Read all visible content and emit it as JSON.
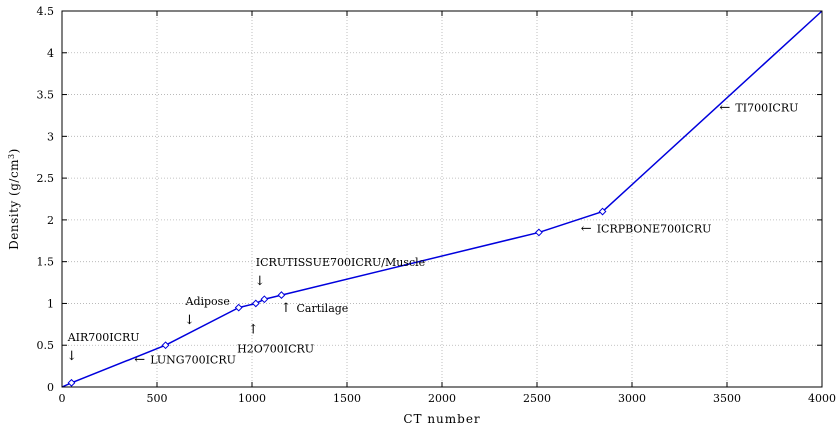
{
  "chart_data": {
    "type": "line",
    "title": "",
    "xlabel": "CT number",
    "ylabel": "Density (g/cm³)",
    "ylabel_base": "Density (g/cm",
    "ylabel_exponent": "3",
    "ylabel_close": ")",
    "xlim": [
      0,
      4000
    ],
    "ylim": [
      0,
      4.5
    ],
    "x_ticks": [
      0,
      500,
      1000,
      1500,
      2000,
      2500,
      3000,
      3500,
      4000
    ],
    "y_ticks": [
      0,
      0.5,
      1,
      1.5,
      2,
      2.5,
      3,
      3.5,
      4,
      4.5
    ],
    "x_tick_labels": [
      "0",
      "500",
      "1000",
      "1500",
      "2000",
      "2500",
      "3000",
      "3500",
      "4000"
    ],
    "y_tick_labels": [
      "0",
      "0.5",
      "1",
      "1.5",
      "2",
      "2.5",
      "3",
      "3.5",
      "4",
      "4.5"
    ],
    "grid": true,
    "legend": "none",
    "series": [
      {
        "color": "#0000dd",
        "marker": "diamond",
        "x": [
          0,
          50,
          545,
          930,
          1020,
          1065,
          1155,
          2510,
          2845,
          4000
        ],
        "y": [
          0,
          0.05,
          0.5,
          0.95,
          1.0,
          1.05,
          1.1,
          1.85,
          2.1,
          4.5
        ],
        "marker_x": [
          50,
          545,
          930,
          1020,
          1065,
          1155,
          2510,
          2845
        ],
        "marker_y": [
          0.05,
          0.5,
          0.95,
          1.0,
          1.05,
          1.1,
          1.85,
          2.1
        ]
      }
    ],
    "annotations": [
      {
        "text": "AIR700ICRU",
        "arrow": "↓",
        "arrow_side": "below",
        "x": 30,
        "y": 0.55
      },
      {
        "text": "LUNG700ICRU",
        "arrow": "←",
        "arrow_side": "left",
        "x": 380,
        "y": 0.28
      },
      {
        "text": "Adipose",
        "arrow": "↓",
        "arrow_side": "below",
        "x": 650,
        "y": 0.98
      },
      {
        "text": "ICRUTISSUE700ICRU/Muscle",
        "arrow": "↓",
        "arrow_side": "below",
        "x": 1020,
        "y": 1.45
      },
      {
        "text": "Cartilage",
        "arrow": "↑",
        "arrow_side": "left",
        "x": 1150,
        "y": 0.9
      },
      {
        "text": "H2O700ICRU",
        "arrow": "↑",
        "arrow_side": "above",
        "x": 985,
        "y": 0.58
      },
      {
        "text": "ICRPBONE700ICRU",
        "arrow": "←",
        "arrow_side": "left",
        "x": 2730,
        "y": 1.85
      },
      {
        "text": "TI700ICRU",
        "arrow": "←",
        "arrow_side": "left",
        "x": 3460,
        "y": 3.3
      }
    ]
  }
}
